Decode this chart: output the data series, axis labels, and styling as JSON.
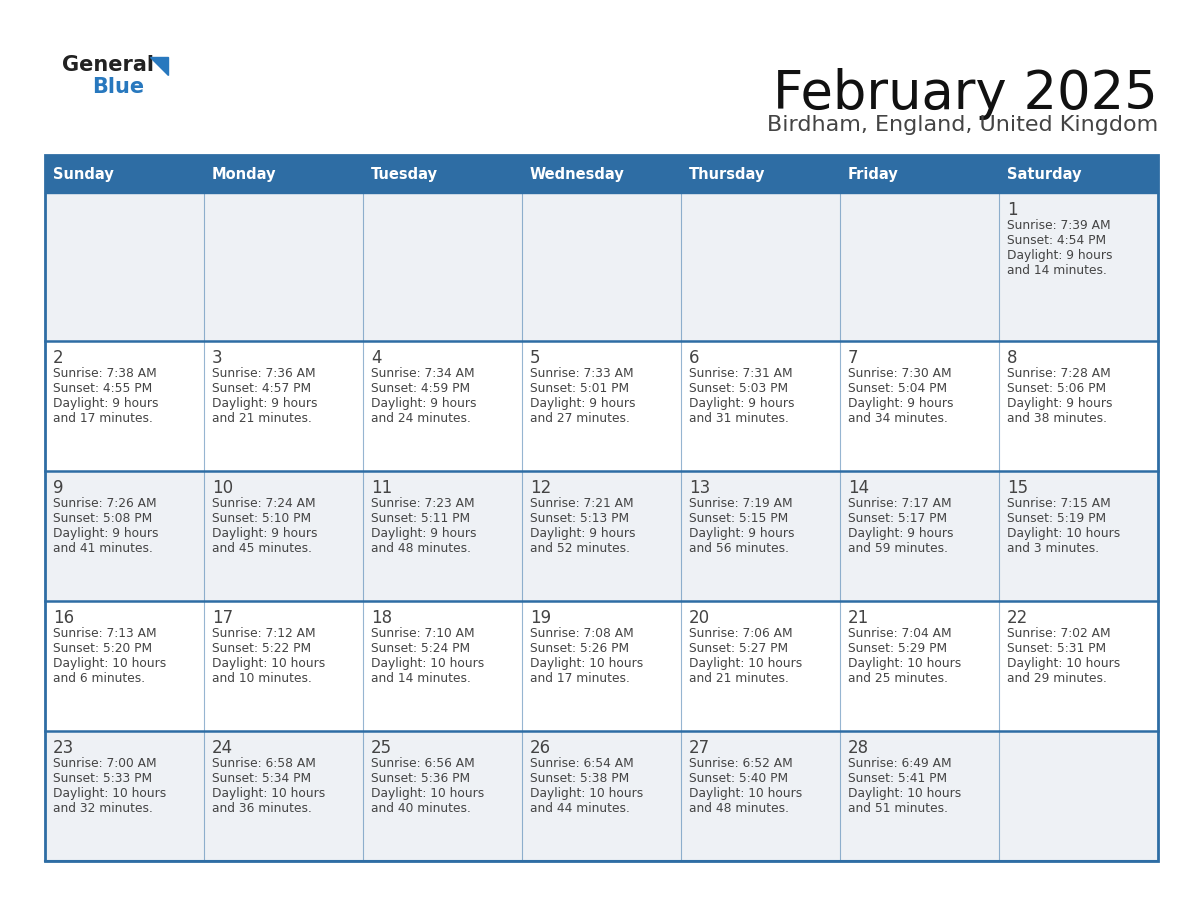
{
  "title": "February 2025",
  "subtitle": "Birdham, England, United Kingdom",
  "days_of_week": [
    "Sunday",
    "Monday",
    "Tuesday",
    "Wednesday",
    "Thursday",
    "Friday",
    "Saturday"
  ],
  "header_bg": "#2e6da4",
  "header_text": "#ffffff",
  "cell_bg": "#ffffff",
  "cell_border": "#2e6da4",
  "day_num_color": "#444444",
  "text_color": "#444444",
  "row_bg_odd": "#eef1f5",
  "row_bg_even": "#ffffff",
  "logo_general_color": "#222222",
  "logo_blue_color": "#2878be",
  "calendar": [
    [
      null,
      null,
      null,
      null,
      null,
      null,
      {
        "day": 1,
        "sunrise": "7:39 AM",
        "sunset": "4:54 PM",
        "daylight": "9 hours",
        "daylight2": "and 14 minutes."
      }
    ],
    [
      {
        "day": 2,
        "sunrise": "7:38 AM",
        "sunset": "4:55 PM",
        "daylight": "9 hours",
        "daylight2": "and 17 minutes."
      },
      {
        "day": 3,
        "sunrise": "7:36 AM",
        "sunset": "4:57 PM",
        "daylight": "9 hours",
        "daylight2": "and 21 minutes."
      },
      {
        "day": 4,
        "sunrise": "7:34 AM",
        "sunset": "4:59 PM",
        "daylight": "9 hours",
        "daylight2": "and 24 minutes."
      },
      {
        "day": 5,
        "sunrise": "7:33 AM",
        "sunset": "5:01 PM",
        "daylight": "9 hours",
        "daylight2": "and 27 minutes."
      },
      {
        "day": 6,
        "sunrise": "7:31 AM",
        "sunset": "5:03 PM",
        "daylight": "9 hours",
        "daylight2": "and 31 minutes."
      },
      {
        "day": 7,
        "sunrise": "7:30 AM",
        "sunset": "5:04 PM",
        "daylight": "9 hours",
        "daylight2": "and 34 minutes."
      },
      {
        "day": 8,
        "sunrise": "7:28 AM",
        "sunset": "5:06 PM",
        "daylight": "9 hours",
        "daylight2": "and 38 minutes."
      }
    ],
    [
      {
        "day": 9,
        "sunrise": "7:26 AM",
        "sunset": "5:08 PM",
        "daylight": "9 hours",
        "daylight2": "and 41 minutes."
      },
      {
        "day": 10,
        "sunrise": "7:24 AM",
        "sunset": "5:10 PM",
        "daylight": "9 hours",
        "daylight2": "and 45 minutes."
      },
      {
        "day": 11,
        "sunrise": "7:23 AM",
        "sunset": "5:11 PM",
        "daylight": "9 hours",
        "daylight2": "and 48 minutes."
      },
      {
        "day": 12,
        "sunrise": "7:21 AM",
        "sunset": "5:13 PM",
        "daylight": "9 hours",
        "daylight2": "and 52 minutes."
      },
      {
        "day": 13,
        "sunrise": "7:19 AM",
        "sunset": "5:15 PM",
        "daylight": "9 hours",
        "daylight2": "and 56 minutes."
      },
      {
        "day": 14,
        "sunrise": "7:17 AM",
        "sunset": "5:17 PM",
        "daylight": "9 hours",
        "daylight2": "and 59 minutes."
      },
      {
        "day": 15,
        "sunrise": "7:15 AM",
        "sunset": "5:19 PM",
        "daylight": "10 hours",
        "daylight2": "and 3 minutes."
      }
    ],
    [
      {
        "day": 16,
        "sunrise": "7:13 AM",
        "sunset": "5:20 PM",
        "daylight": "10 hours",
        "daylight2": "and 6 minutes."
      },
      {
        "day": 17,
        "sunrise": "7:12 AM",
        "sunset": "5:22 PM",
        "daylight": "10 hours",
        "daylight2": "and 10 minutes."
      },
      {
        "day": 18,
        "sunrise": "7:10 AM",
        "sunset": "5:24 PM",
        "daylight": "10 hours",
        "daylight2": "and 14 minutes."
      },
      {
        "day": 19,
        "sunrise": "7:08 AM",
        "sunset": "5:26 PM",
        "daylight": "10 hours",
        "daylight2": "and 17 minutes."
      },
      {
        "day": 20,
        "sunrise": "7:06 AM",
        "sunset": "5:27 PM",
        "daylight": "10 hours",
        "daylight2": "and 21 minutes."
      },
      {
        "day": 21,
        "sunrise": "7:04 AM",
        "sunset": "5:29 PM",
        "daylight": "10 hours",
        "daylight2": "and 25 minutes."
      },
      {
        "day": 22,
        "sunrise": "7:02 AM",
        "sunset": "5:31 PM",
        "daylight": "10 hours",
        "daylight2": "and 29 minutes."
      }
    ],
    [
      {
        "day": 23,
        "sunrise": "7:00 AM",
        "sunset": "5:33 PM",
        "daylight": "10 hours",
        "daylight2": "and 32 minutes."
      },
      {
        "day": 24,
        "sunrise": "6:58 AM",
        "sunset": "5:34 PM",
        "daylight": "10 hours",
        "daylight2": "and 36 minutes."
      },
      {
        "day": 25,
        "sunrise": "6:56 AM",
        "sunset": "5:36 PM",
        "daylight": "10 hours",
        "daylight2": "and 40 minutes."
      },
      {
        "day": 26,
        "sunrise": "6:54 AM",
        "sunset": "5:38 PM",
        "daylight": "10 hours",
        "daylight2": "and 44 minutes."
      },
      {
        "day": 27,
        "sunrise": "6:52 AM",
        "sunset": "5:40 PM",
        "daylight": "10 hours",
        "daylight2": "and 48 minutes."
      },
      {
        "day": 28,
        "sunrise": "6:49 AM",
        "sunset": "5:41 PM",
        "daylight": "10 hours",
        "daylight2": "and 51 minutes."
      },
      null
    ]
  ]
}
